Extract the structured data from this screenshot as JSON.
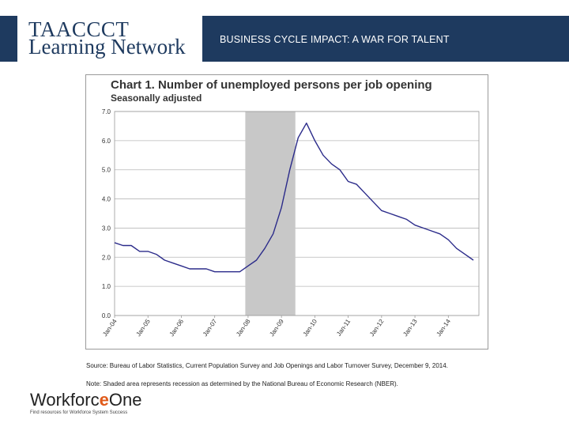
{
  "header": {
    "logo_line1": "TAACCCT",
    "logo_line2": "Learning Network",
    "slide_title": "BUSINESS CYCLE IMPACT: A WAR FOR TALENT",
    "band_color": "#1e3a5f"
  },
  "chart_data": {
    "type": "line",
    "title": "Chart 1. Number of unemployed persons per job opening",
    "subtitle": "Seasonally adjusted",
    "xlabel": "",
    "ylabel": "",
    "ylim": [
      0,
      7
    ],
    "yticks": [
      "0.0",
      "1.0",
      "2.0",
      "3.0",
      "4.0",
      "5.0",
      "6.0",
      "7.0"
    ],
    "xticks": [
      "Jan-04",
      "Jan-05",
      "Jan-06",
      "Jan-07",
      "Jan-08",
      "Jan-09",
      "Jan-10",
      "Jan-11",
      "Jan-12",
      "Jan-13",
      "Jan-14"
    ],
    "grid": true,
    "line_color": "#2b2b8a",
    "shade_color": "#c8c8c8",
    "recession_shading": {
      "start": "Dec-07",
      "end": "Jun-09"
    },
    "series": [
      {
        "values": [
          [
            "Jan-04",
            2.5
          ],
          [
            "Apr-04",
            2.4
          ],
          [
            "Jul-04",
            2.4
          ],
          [
            "Oct-04",
            2.2
          ],
          [
            "Jan-05",
            2.2
          ],
          [
            "Apr-05",
            2.1
          ],
          [
            "Jul-05",
            1.9
          ],
          [
            "Oct-05",
            1.8
          ],
          [
            "Jan-06",
            1.7
          ],
          [
            "Apr-06",
            1.6
          ],
          [
            "Jul-06",
            1.6
          ],
          [
            "Oct-06",
            1.6
          ],
          [
            "Jan-07",
            1.5
          ],
          [
            "Apr-07",
            1.5
          ],
          [
            "Jul-07",
            1.5
          ],
          [
            "Oct-07",
            1.5
          ],
          [
            "Jan-08",
            1.7
          ],
          [
            "Apr-08",
            1.9
          ],
          [
            "Jul-08",
            2.3
          ],
          [
            "Oct-08",
            2.8
          ],
          [
            "Jan-09",
            3.7
          ],
          [
            "Apr-09",
            5.0
          ],
          [
            "Jul-09",
            6.1
          ],
          [
            "Oct-09",
            6.6
          ],
          [
            "Jan-10",
            6.0
          ],
          [
            "Apr-10",
            5.5
          ],
          [
            "Jul-10",
            5.2
          ],
          [
            "Oct-10",
            5.0
          ],
          [
            "Jan-11",
            4.6
          ],
          [
            "Apr-11",
            4.5
          ],
          [
            "Jul-11",
            4.2
          ],
          [
            "Oct-11",
            3.9
          ],
          [
            "Jan-12",
            3.6
          ],
          [
            "Apr-12",
            3.5
          ],
          [
            "Jul-12",
            3.4
          ],
          [
            "Oct-12",
            3.3
          ],
          [
            "Jan-13",
            3.1
          ],
          [
            "Apr-13",
            3.0
          ],
          [
            "Jul-13",
            2.9
          ],
          [
            "Oct-13",
            2.8
          ],
          [
            "Jan-14",
            2.6
          ],
          [
            "Apr-14",
            2.3
          ],
          [
            "Jul-14",
            2.1
          ],
          [
            "Oct-14",
            1.9
          ]
        ]
      }
    ]
  },
  "notes": {
    "source": "Source: Bureau of Labor Statistics, Current Population Survey and Job Openings and Labor Turnover Survey, December 9, 2014.",
    "shading": "Note: Shaded area represents recession as determined by the National Bureau of Economic Research (NBER)."
  },
  "footer": {
    "logo_text_a": "Workforc",
    "logo_text_b": "e",
    "logo_text_c": "One",
    "tagline": "Find resources for Workforce System Success",
    "accent_color": "#e05a1a"
  }
}
